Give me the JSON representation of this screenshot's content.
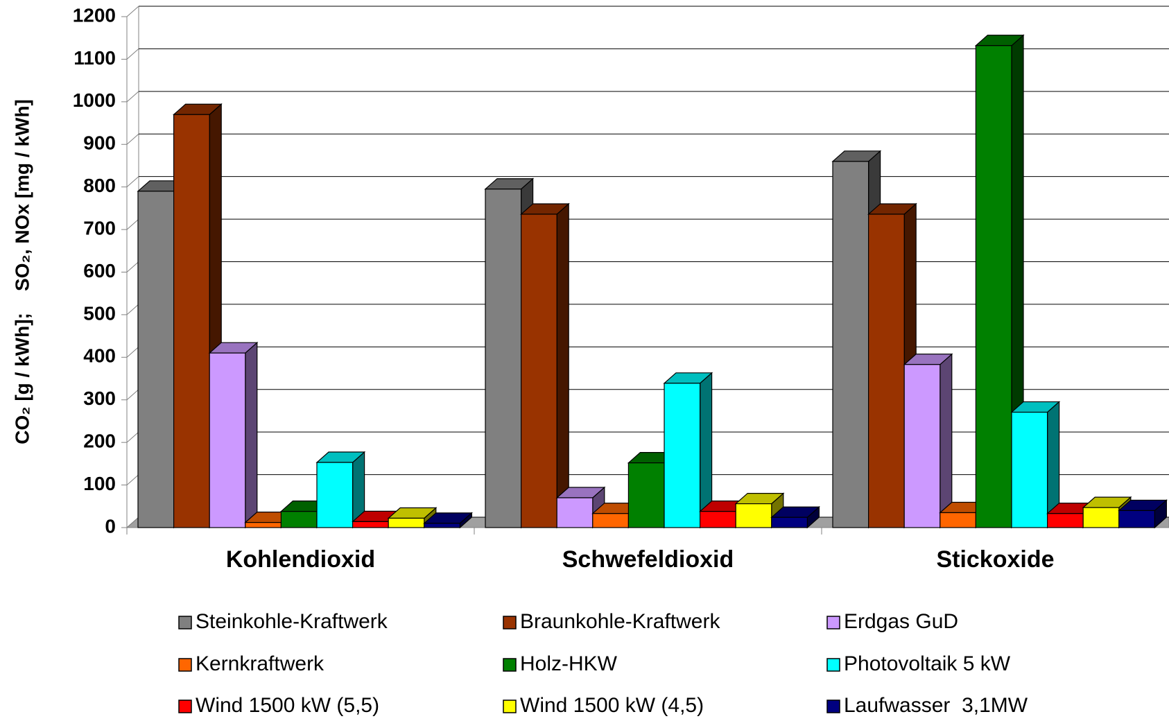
{
  "chart_data": {
    "type": "bar3d",
    "y_label": "CO₂ [g / kWh];    SO₂, NOx [mg / kWh]",
    "categories": [
      "Kohlendioxid",
      "Schwefeldioxid",
      "Stickoxide"
    ],
    "ylim": [
      0,
      1200
    ],
    "yticks": [
      0,
      100,
      200,
      300,
      400,
      500,
      600,
      700,
      800,
      900,
      1000,
      1100,
      1200
    ],
    "grid": true,
    "series": [
      {
        "name": "Steinkohle-Kraftwerk",
        "color": "#808080",
        "values": [
          790,
          795,
          860
        ]
      },
      {
        "name": "Braunkohle-Kraftwerk",
        "color": "#993300",
        "values": [
          970,
          736,
          736
        ]
      },
      {
        "name": "Erdgas GuD",
        "color": "#cc99ff",
        "values": [
          410,
          70,
          383
        ]
      },
      {
        "name": "Kernkraftwerk",
        "color": "#ff6600",
        "values": [
          12,
          33,
          35
        ]
      },
      {
        "name": "Holz-HKW",
        "color": "#008000",
        "values": [
          38,
          152,
          1132
        ]
      },
      {
        "name": "Photovoltaik 5 kW",
        "color": "#00ffff",
        "values": [
          153,
          339,
          271
        ]
      },
      {
        "name": "Wind 1500 kW (5,5)",
        "color": "#ff0000",
        "values": [
          14,
          38,
          33
        ]
      },
      {
        "name": "Wind 1500 kW (4,5)",
        "color": "#ffff00",
        "values": [
          22,
          56,
          47
        ]
      },
      {
        "name": "Laufwasser  3,1MW",
        "color": "#000080",
        "values": [
          10,
          24,
          40
        ]
      }
    ]
  }
}
